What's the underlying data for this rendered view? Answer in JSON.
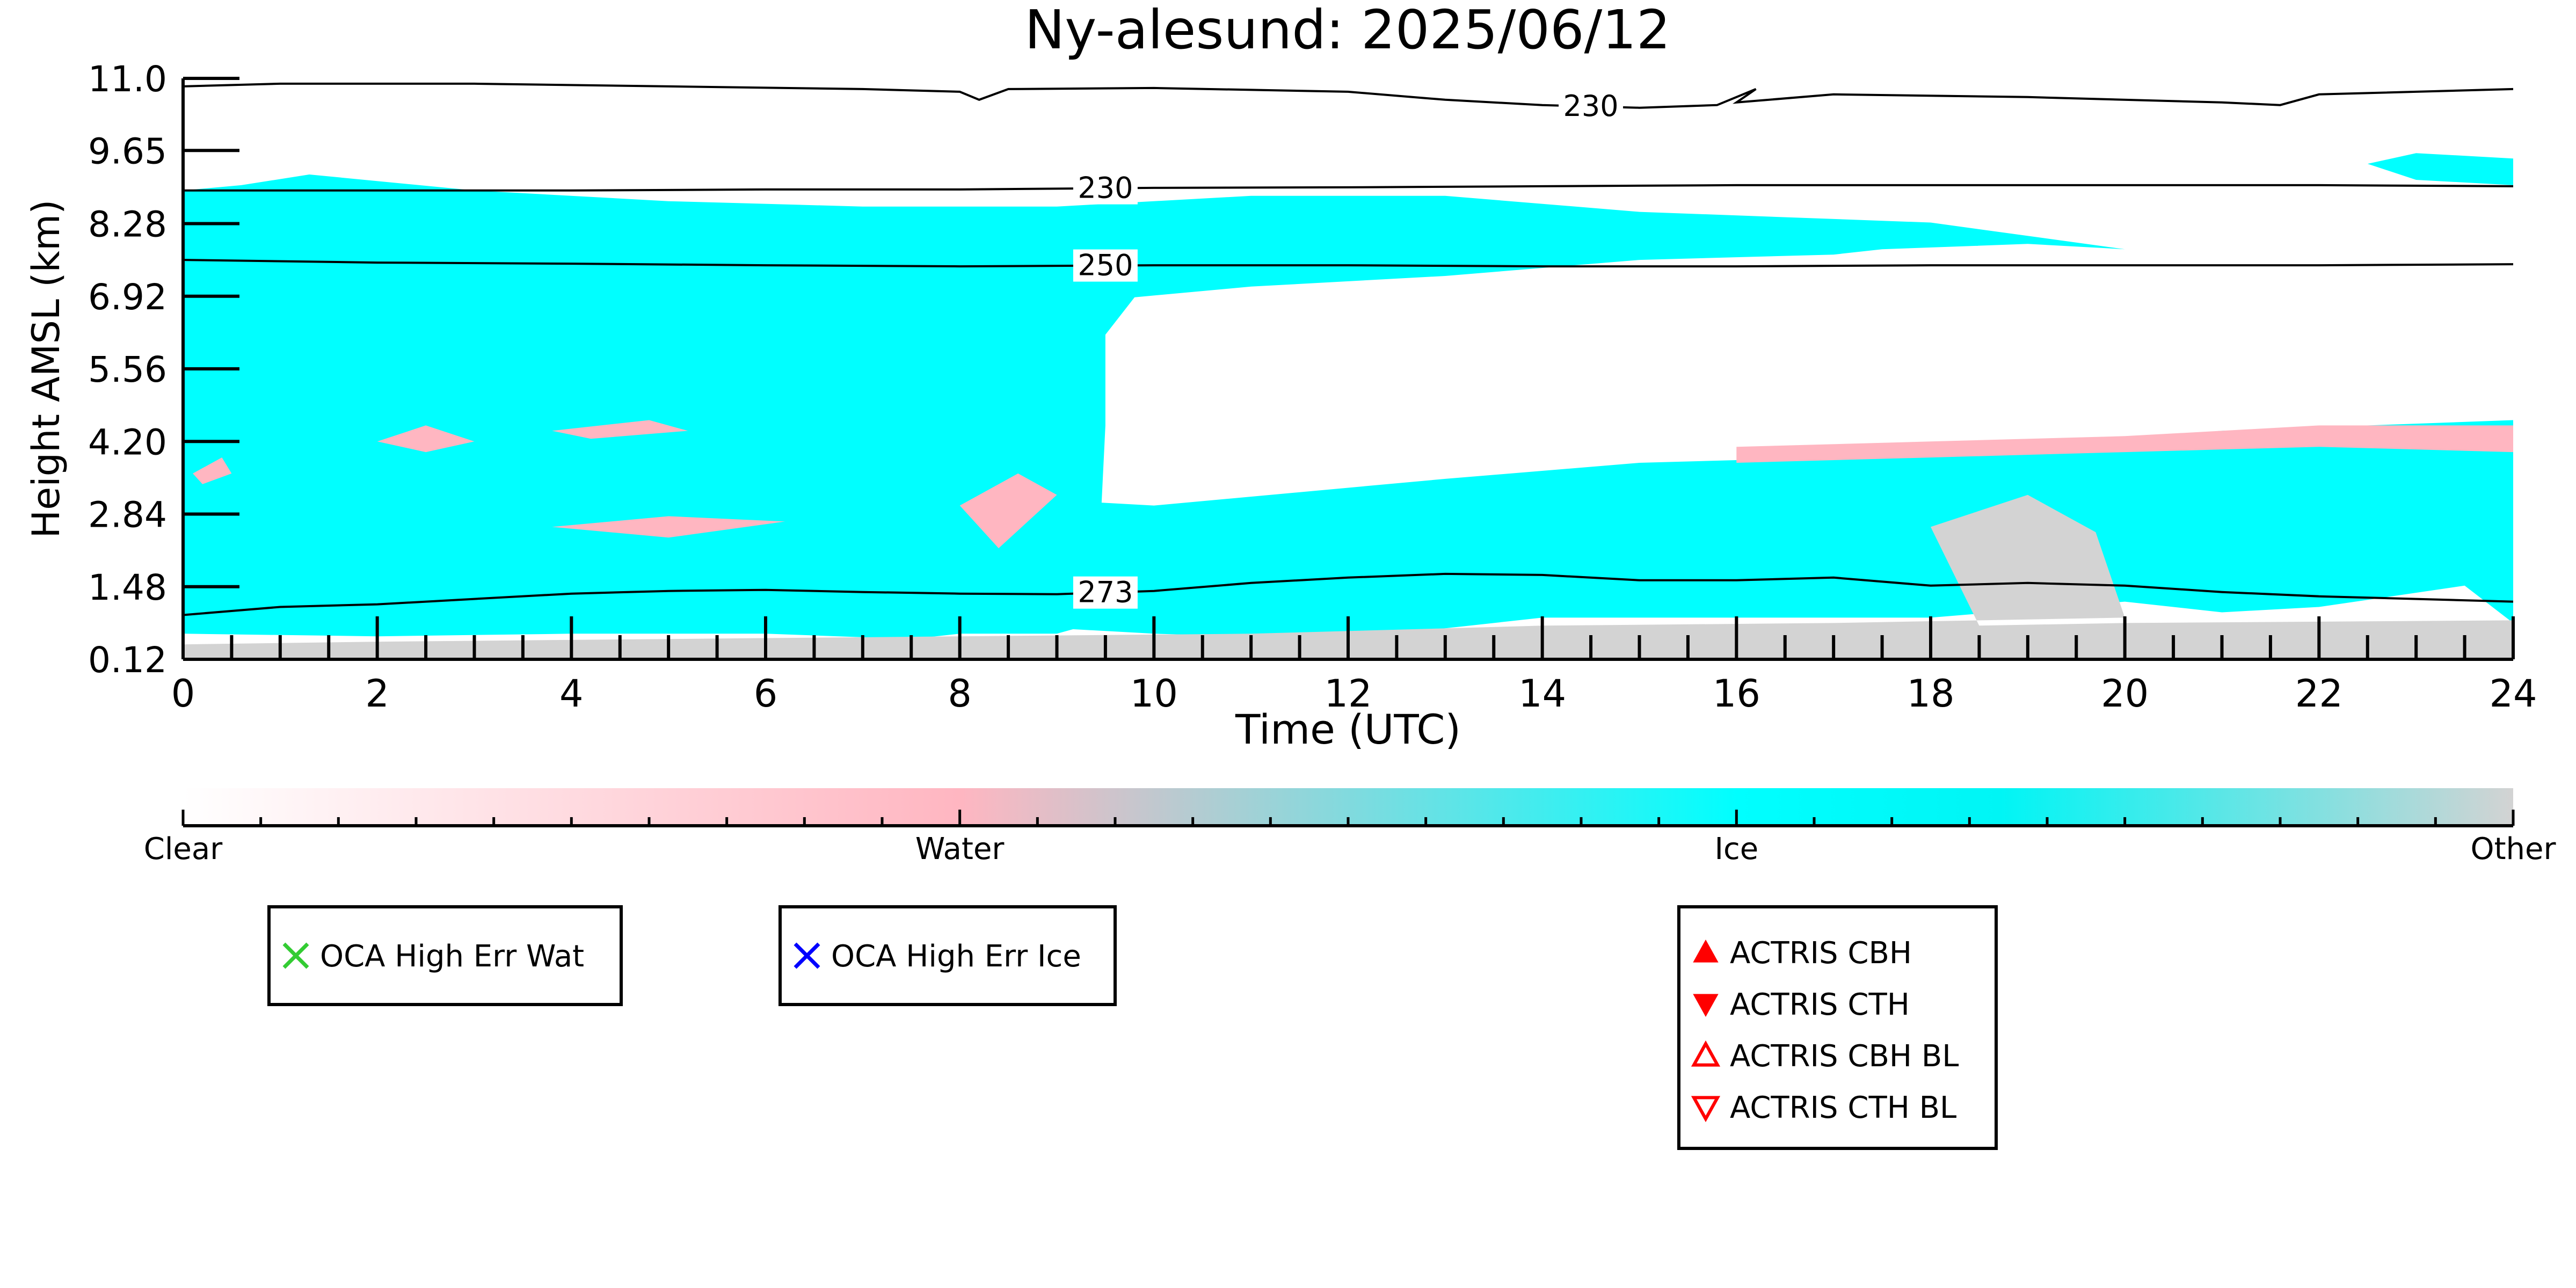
{
  "chart_data": {
    "type": "heatmap",
    "title": "Ny-alesund: 2025/06/12",
    "xlabel": "Time (UTC)",
    "ylabel": "Height AMSL (km)",
    "xlim": [
      0,
      24
    ],
    "ylim": [
      0.12,
      11.0
    ],
    "x_ticks": [
      "0",
      "2",
      "4",
      "6",
      "8",
      "10",
      "12",
      "14",
      "16",
      "18",
      "20",
      "22",
      "24"
    ],
    "y_ticks": [
      "0.12",
      "1.48",
      "2.84",
      "4.20",
      "5.56",
      "6.92",
      "8.28",
      "9.65",
      "11.0"
    ],
    "colors": {
      "clear": "#ffffff",
      "water": "#ffb6c1",
      "ice": "#00ffff",
      "other": "#d3d3d3"
    },
    "regions": [
      {
        "class": "ice",
        "polygon": [
          [
            0,
            0.6
          ],
          [
            2,
            0.55
          ],
          [
            4,
            0.6
          ],
          [
            6,
            0.6
          ],
          [
            7.5,
            0.5
          ],
          [
            8,
            0.6
          ],
          [
            9,
            0.6
          ],
          [
            9.4,
            0.8
          ],
          [
            9.5,
            4.5
          ],
          [
            9.5,
            6.2
          ],
          [
            9.8,
            6.9
          ],
          [
            11,
            7.1
          ],
          [
            13,
            7.3
          ],
          [
            15,
            7.6
          ],
          [
            17,
            7.7
          ],
          [
            17.5,
            7.8
          ],
          [
            19,
            7.9
          ],
          [
            20,
            7.8
          ],
          [
            18,
            8.3
          ],
          [
            15,
            8.5
          ],
          [
            13,
            8.8
          ],
          [
            11,
            8.8
          ],
          [
            9,
            8.6
          ],
          [
            7,
            8.6
          ],
          [
            5,
            8.7
          ],
          [
            3,
            8.9
          ],
          [
            1.3,
            9.2
          ],
          [
            0.6,
            9.0
          ],
          [
            0,
            8.9
          ]
        ]
      },
      {
        "class": "ice",
        "polygon": [
          [
            8,
            3.2
          ],
          [
            10,
            3.0
          ],
          [
            13,
            3.5
          ],
          [
            15,
            3.8
          ],
          [
            17,
            3.9
          ],
          [
            19,
            4.1
          ],
          [
            21,
            4.4
          ],
          [
            24,
            4.6
          ],
          [
            24,
            0.8
          ],
          [
            23.5,
            1.5
          ],
          [
            22,
            1.1
          ],
          [
            21,
            1.0
          ],
          [
            20,
            1.2
          ],
          [
            18,
            0.9
          ],
          [
            16,
            0.9
          ],
          [
            14,
            0.9
          ],
          [
            12,
            0.5
          ],
          [
            10,
            0.6
          ],
          [
            9,
            0.7
          ],
          [
            8,
            0.6
          ]
        ]
      },
      {
        "class": "ice",
        "polygon": [
          [
            22.5,
            9.4
          ],
          [
            23,
            9.6
          ],
          [
            24,
            9.5
          ],
          [
            24,
            9.0
          ],
          [
            23,
            9.1
          ]
        ]
      },
      {
        "class": "other",
        "polygon": [
          [
            0,
            0.12
          ],
          [
            24,
            0.12
          ],
          [
            24,
            0.85
          ],
          [
            20,
            0.8
          ],
          [
            18.5,
            0.75
          ],
          [
            18,
            2.6
          ],
          [
            19,
            3.2
          ],
          [
            19.7,
            2.5
          ],
          [
            20,
            0.9
          ],
          [
            17,
            0.8
          ],
          [
            14,
            0.75
          ],
          [
            11,
            0.6
          ],
          [
            8,
            0.55
          ],
          [
            5,
            0.5
          ],
          [
            2,
            0.45
          ],
          [
            0,
            0.4
          ]
        ]
      },
      {
        "class": "water",
        "polygon": [
          [
            16,
            3.8
          ],
          [
            18,
            3.9
          ],
          [
            20,
            4.0
          ],
          [
            22,
            4.1
          ],
          [
            24,
            4.0
          ],
          [
            24,
            4.5
          ],
          [
            22,
            4.5
          ],
          [
            20,
            4.3
          ],
          [
            18,
            4.2
          ],
          [
            16,
            4.1
          ]
        ]
      },
      {
        "class": "water",
        "polygon": [
          [
            3.8,
            4.4
          ],
          [
            4.8,
            4.6
          ],
          [
            5.2,
            4.4
          ],
          [
            4.2,
            4.25
          ]
        ]
      },
      {
        "class": "water",
        "polygon": [
          [
            3.8,
            2.6
          ],
          [
            5,
            2.8
          ],
          [
            6.2,
            2.7
          ],
          [
            5,
            2.4
          ]
        ]
      },
      {
        "class": "water",
        "polygon": [
          [
            0.1,
            3.6
          ],
          [
            0.4,
            3.9
          ],
          [
            0.5,
            3.6
          ],
          [
            0.2,
            3.4
          ]
        ]
      },
      {
        "class": "water",
        "polygon": [
          [
            8,
            3.0
          ],
          [
            8.4,
            2.2
          ],
          [
            9,
            3.2
          ],
          [
            8.6,
            3.6
          ]
        ]
      },
      {
        "class": "water",
        "polygon": [
          [
            2,
            4.2
          ],
          [
            2.5,
            4.5
          ],
          [
            3,
            4.2
          ],
          [
            2.5,
            4.0
          ]
        ]
      }
    ],
    "contours": [
      {
        "label": "230",
        "label_x": 14.5,
        "points": [
          [
            0,
            10.85
          ],
          [
            1,
            10.9
          ],
          [
            3,
            10.9
          ],
          [
            5,
            10.85
          ],
          [
            7,
            10.8
          ],
          [
            8,
            10.75
          ],
          [
            8.2,
            10.6
          ],
          [
            8.5,
            10.8
          ],
          [
            10,
            10.82
          ],
          [
            12,
            10.75
          ],
          [
            13,
            10.6
          ],
          [
            14,
            10.5
          ],
          [
            15,
            10.45
          ],
          [
            15.8,
            10.5
          ],
          [
            16.2,
            10.8
          ],
          [
            16,
            10.55
          ],
          [
            17,
            10.7
          ],
          [
            19,
            10.65
          ],
          [
            21,
            10.55
          ],
          [
            21.6,
            10.5
          ],
          [
            22,
            10.7
          ],
          [
            24,
            10.8
          ]
        ]
      },
      {
        "label": "230",
        "label_x": 9.5,
        "points": [
          [
            0,
            8.9
          ],
          [
            2,
            8.9
          ],
          [
            4,
            8.9
          ],
          [
            6,
            8.92
          ],
          [
            8,
            8.92
          ],
          [
            10,
            8.95
          ],
          [
            12,
            8.96
          ],
          [
            14,
            8.98
          ],
          [
            16,
            9.0
          ],
          [
            18,
            9.0
          ],
          [
            20,
            9.0
          ],
          [
            22,
            9.0
          ],
          [
            24,
            8.98
          ]
        ]
      },
      {
        "label": "250",
        "label_x": 9.5,
        "points": [
          [
            0,
            7.6
          ],
          [
            2,
            7.55
          ],
          [
            4,
            7.53
          ],
          [
            6,
            7.5
          ],
          [
            8,
            7.48
          ],
          [
            10,
            7.5
          ],
          [
            12,
            7.5
          ],
          [
            14,
            7.48
          ],
          [
            16,
            7.48
          ],
          [
            18,
            7.5
          ],
          [
            20,
            7.5
          ],
          [
            22,
            7.5
          ],
          [
            24,
            7.52
          ]
        ]
      },
      {
        "label": "273",
        "label_x": 9.5,
        "points": [
          [
            0,
            0.95
          ],
          [
            1,
            1.1
          ],
          [
            2,
            1.15
          ],
          [
            3,
            1.25
          ],
          [
            4,
            1.35
          ],
          [
            5,
            1.4
          ],
          [
            6,
            1.42
          ],
          [
            7,
            1.38
          ],
          [
            8,
            1.35
          ],
          [
            9,
            1.34
          ],
          [
            10,
            1.4
          ],
          [
            11,
            1.55
          ],
          [
            12,
            1.65
          ],
          [
            13,
            1.72
          ],
          [
            14,
            1.7
          ],
          [
            15,
            1.6
          ],
          [
            16,
            1.6
          ],
          [
            17,
            1.65
          ],
          [
            18,
            1.5
          ],
          [
            19,
            1.55
          ],
          [
            20,
            1.5
          ],
          [
            21,
            1.38
          ],
          [
            22,
            1.3
          ],
          [
            23,
            1.25
          ],
          [
            24,
            1.2
          ]
        ]
      }
    ],
    "colorbar": {
      "labels": [
        "Clear",
        "Water",
        "Ice",
        "Other"
      ]
    },
    "legends": [
      {
        "entries": [
          {
            "label": "OCA High Err Wat",
            "marker": "x-cross",
            "color": "#33cc33"
          }
        ]
      },
      {
        "entries": [
          {
            "label": "OCA High Err Ice",
            "marker": "x-cross",
            "color": "#0000ff"
          }
        ]
      },
      {
        "entries": [
          {
            "label": "ACTRIS CBH",
            "marker": "triangle-up-filled",
            "color": "#ff0000"
          },
          {
            "label": "ACTRIS CTH",
            "marker": "triangle-down-filled",
            "color": "#ff0000"
          },
          {
            "label": "ACTRIS CBH BL",
            "marker": "triangle-up-open",
            "color": "#ff0000"
          },
          {
            "label": "ACTRIS CTH BL",
            "marker": "triangle-down-open",
            "color": "#ff0000"
          }
        ]
      }
    ]
  }
}
